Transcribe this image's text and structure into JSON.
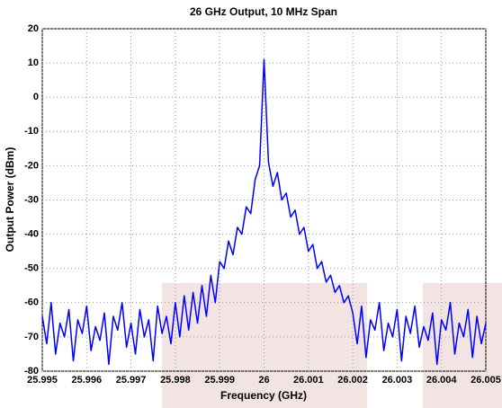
{
  "chart_data": {
    "type": "line",
    "title": "26 GHz Output, 10 MHz Span",
    "xlabel": "Frequency (GHz)",
    "ylabel": "Output Power (dBm)",
    "x": [
      25.995,
      25.9951,
      25.9952,
      25.9953,
      25.9954,
      25.9955,
      25.9956,
      25.9957,
      25.9958,
      25.9959,
      25.996,
      25.9961,
      25.9962,
      25.9963,
      25.9964,
      25.9965,
      25.9966,
      25.9967,
      25.9968,
      25.9969,
      25.997,
      25.9971,
      25.9972,
      25.9973,
      25.9974,
      25.9975,
      25.9976,
      25.9977,
      25.9978,
      25.9979,
      25.998,
      25.9981,
      25.9982,
      25.9983,
      25.9984,
      25.9985,
      25.9986,
      25.9987,
      25.9988,
      25.9989,
      25.999,
      25.9991,
      25.9992,
      25.9993,
      25.9994,
      25.9995,
      25.9996,
      25.9997,
      25.9998,
      25.9999,
      26,
      26.0001,
      26.0002,
      26.0003,
      26.0004,
      26.0005,
      26.0006,
      26.0007,
      26.0008,
      26.0009,
      26.001,
      26.0011,
      26.0012,
      26.0013,
      26.0014,
      26.0015,
      26.0016,
      26.0017,
      26.0018,
      26.0019,
      26.002,
      26.0021,
      26.0022,
      26.0023,
      26.0024,
      26.0025,
      26.0026,
      26.0027,
      26.0028,
      26.0029,
      26.003,
      26.0031,
      26.0032,
      26.0033,
      26.0034,
      26.0035,
      26.0036,
      26.0037,
      26.0038,
      26.0039,
      26.004,
      26.0041,
      26.0042,
      26.0043,
      26.0044,
      26.0045,
      26.0046,
      26.0047,
      26.0048,
      26.0049,
      26.005
    ],
    "series": [
      {
        "color": "#0000ff",
        "values": [
          -64,
          -72,
          -60,
          -75,
          -66,
          -70,
          -62,
          -77,
          -65,
          -69,
          -61,
          -74,
          -67,
          -71,
          -63,
          -78,
          -64,
          -68,
          -60,
          -73,
          -66,
          -75,
          -62,
          -70,
          -65,
          -77,
          -61,
          -69,
          -64,
          -72,
          -60,
          -70,
          -58,
          -68,
          -57,
          -66,
          -55,
          -64,
          -52,
          -60,
          -48,
          -50,
          -42,
          -46,
          -38,
          -40,
          -32,
          -34,
          -24,
          -20,
          11,
          -19,
          -26,
          -22,
          -30,
          -28,
          -35,
          -33,
          -40,
          -38,
          -45,
          -43,
          -50,
          -48,
          -54,
          -52,
          -57,
          -55,
          -60,
          -58,
          -63,
          -72,
          -61,
          -76,
          -65,
          -68,
          -60,
          -74,
          -66,
          -70,
          -62,
          -77,
          -64,
          -69,
          -61,
          -73,
          -67,
          -71,
          -63,
          -78,
          -65,
          -68,
          -60,
          -75,
          -66,
          -70,
          -62,
          -76,
          -64,
          -72,
          -66
        ]
      }
    ],
    "xlim": [
      25.995,
      26.005
    ],
    "xticks": [
      25.995,
      25.996,
      25.997,
      25.998,
      25.999,
      26,
      26.001,
      26.002,
      26.003,
      26.004,
      26.005
    ],
    "ylim": [
      -80,
      20
    ],
    "yticks": [
      20,
      10,
      0,
      -10,
      -20,
      -30,
      -40,
      -50,
      -60,
      -70,
      -80
    ],
    "grid": true
  }
}
